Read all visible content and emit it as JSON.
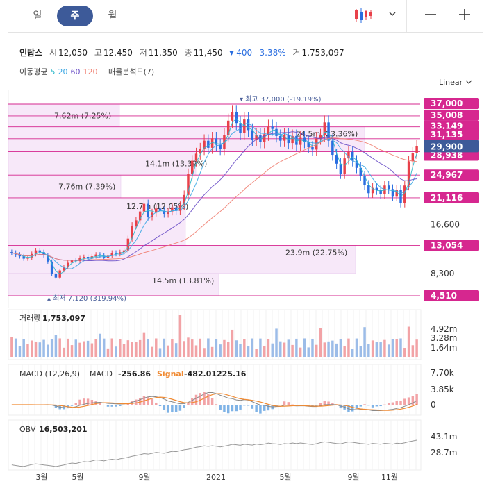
{
  "tabs": [
    {
      "label": "일",
      "active": false
    },
    {
      "label": "주",
      "active": true
    },
    {
      "label": "월",
      "active": false
    }
  ],
  "toolbar": {
    "chart_type_icon": "candlestick-icon",
    "dropdown_icon": "chevron-down-icon",
    "zoom_out_icon": "minus-icon",
    "zoom_in_icon": "plus-icon"
  },
  "stock": {
    "name": "인탑스",
    "open_label": "시",
    "open": "12,050",
    "high_label": "고",
    "high": "12,450",
    "low_label": "저",
    "low": "11,350",
    "close_label": "종",
    "close": "11,450",
    "change": "▾ 400",
    "change_pct": "-3.38%",
    "volume_label": "거",
    "volume": "1,753,097"
  },
  "indicators": {
    "ma_label": "이동평균",
    "ma_periods": [
      {
        "value": "5",
        "color": "#2bb8c9"
      },
      {
        "value": "20",
        "color": "#3aa7e3"
      },
      {
        "value": "60",
        "color": "#6a4fc7"
      },
      {
        "value": "120",
        "color": "#f08072"
      }
    ],
    "vp_label": "매물분석도(7)"
  },
  "scale_mode": "Linear",
  "colors": {
    "up": "#e8414a",
    "down": "#2a6ee0",
    "level": "#d6278f",
    "current": "#3d5a99",
    "band": "#f6e4f8"
  },
  "chart_data": {
    "type": "candlestick",
    "price_axis": {
      "ylim": [
        4510,
        37000
      ],
      "ticks": [
        "16,600",
        "8,300"
      ],
      "level_labels": [
        "37,000",
        "35,008",
        "33,149",
        "31,135",
        "28,938",
        "24,967",
        "21,116",
        "13,054",
        "4,510"
      ],
      "current": "29,900"
    },
    "x_axis_labels": [
      "3월",
      "5월",
      "9월",
      "2021",
      "5월",
      "9월",
      "11월"
    ],
    "annotations": {
      "high": "▾ 최고 37,000 (-19.19%)",
      "low": "▴ 최저 7,120 (319.94%)"
    },
    "volume_profile": [
      {
        "label": "7.62m (7.25%)",
        "lo": 33149,
        "hi": 37000
      },
      {
        "label": "24.5m (23.36%)",
        "lo": 28938,
        "hi": 33149
      },
      {
        "label": "14.1m (13.39%)",
        "lo": 24967,
        "hi": 28938
      },
      {
        "label": "7.76m (7.39%)",
        "lo": 21116,
        "hi": 24967
      },
      {
        "label": "12.7m (12.05%)",
        "lo": 13054,
        "hi": 21116
      },
      {
        "label": "23.9m (22.75%)",
        "lo": 8300,
        "hi": 13054
      },
      {
        "label": "14.5m (13.81%)",
        "lo": 4510,
        "hi": 8300
      }
    ],
    "close_series_approx": [
      11800,
      11500,
      11200,
      10800,
      11000,
      11600,
      12200,
      11900,
      11400,
      10300,
      8200,
      7600,
      8800,
      9400,
      10100,
      10600,
      10400,
      10900,
      11100,
      10800,
      11200,
      11500,
      11300,
      10900,
      11300,
      11800,
      11600,
      11900,
      12200,
      14200,
      16400,
      17300,
      18800,
      20100,
      17900,
      18600,
      19300,
      18900,
      18400,
      18800,
      19500,
      18900,
      19800,
      21600,
      25200,
      27400,
      28600,
      29400,
      30800,
      29600,
      31200,
      30100,
      29400,
      31800,
      34200,
      35600,
      33800,
      32100,
      34400,
      32600,
      30900,
      31800,
      30600,
      31900,
      33200,
      32800,
      31600,
      30800,
      31800,
      30400,
      31600,
      30100,
      31300,
      30600,
      29700,
      29300,
      31200,
      31700,
      33900,
      30800,
      28400,
      26900,
      25200,
      27800,
      28900,
      27400,
      26200,
      24800,
      23300,
      21900,
      22800,
      22400,
      21700,
      23200,
      22600,
      21300,
      22500,
      20200,
      23200,
      27300,
      28700,
      29900
    ],
    "panels": {
      "volume": {
        "label": "거래량",
        "value": "1,753,097",
        "ticks": [
          "4.92m",
          "3.28m",
          "1.64m"
        ]
      },
      "macd": {
        "label": "MACD (12,26,9)",
        "macd_label": "MACD",
        "macd_value": "-256.86",
        "signal_label": "Signal",
        "signal_value": "-482.01225.16",
        "ticks": [
          "7.70k",
          "3.85k",
          "0"
        ]
      },
      "obv": {
        "label": "OBV",
        "value": "16,503,201",
        "ticks": [
          "43.1m",
          "28.7m"
        ]
      }
    }
  }
}
